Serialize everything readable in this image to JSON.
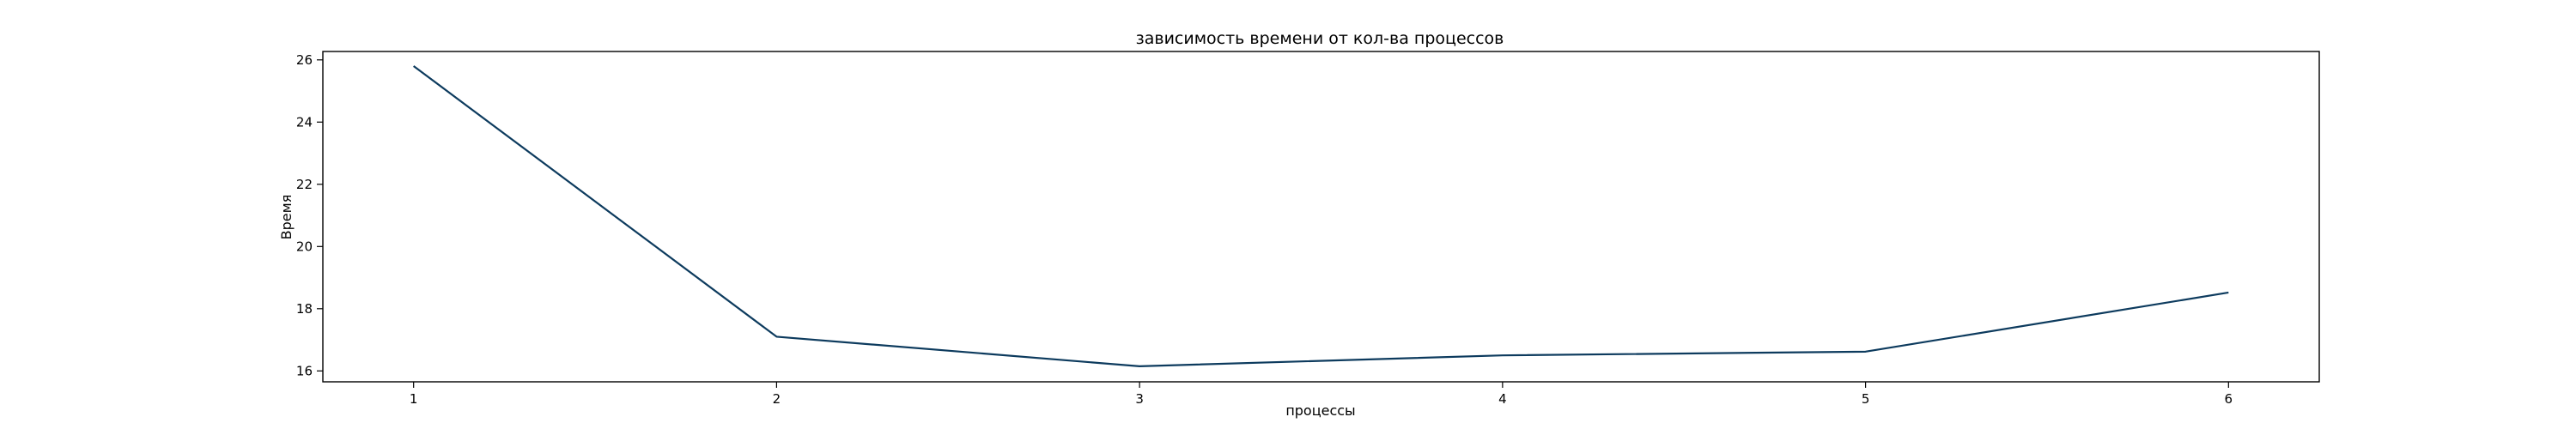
{
  "chart_data": {
    "type": "line",
    "title": "зависимость времени от кол-ва процессов",
    "xlabel": "процессы",
    "ylabel": "Время",
    "x": [
      1,
      2,
      3,
      4,
      5,
      6
    ],
    "series": [
      {
        "values": [
          25.8,
          17.1,
          16.15,
          16.5,
          16.62,
          18.52
        ],
        "color": "#0d3b5e"
      }
    ],
    "x_ticks": [
      "1",
      "2",
      "3",
      "4",
      "5",
      "6"
    ],
    "y_ticks": [
      "16",
      "18",
      "20",
      "22",
      "24",
      "26"
    ],
    "xlim": [
      0.75,
      6.25
    ],
    "ylim": [
      15.65,
      26.27
    ],
    "grid": false,
    "legend": "none"
  }
}
